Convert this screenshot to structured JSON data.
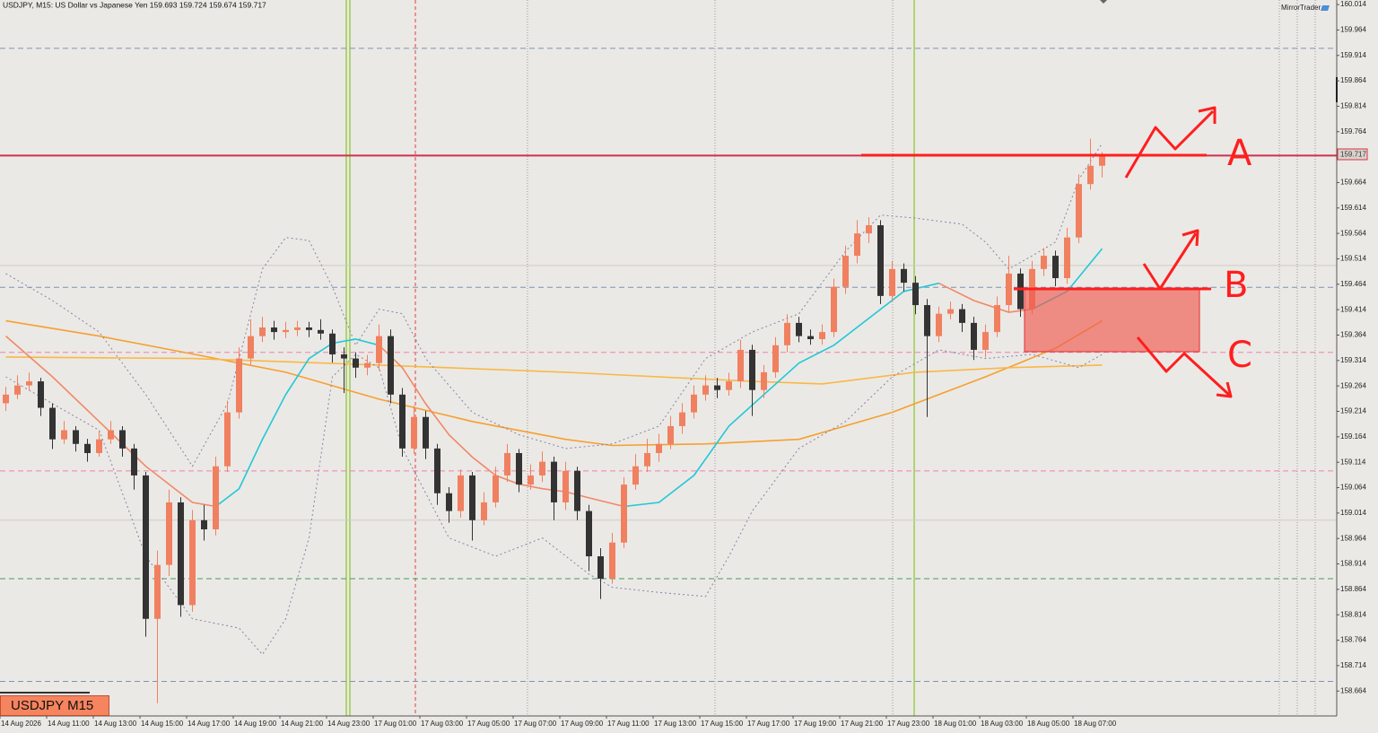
{
  "chart_data": {
    "type": "candlestick",
    "title": "USDJPY, M15:  US Dollar vs Japanese Yen  159.693 159.724 159.674 159.717",
    "brand": "MirrorTrader",
    "badge": "USDJPY M15",
    "annotations": [
      "A",
      "B",
      "C"
    ],
    "bull_color": "#f08060",
    "bear_color": "#333333",
    "ylim": [
      158.615,
      160.023
    ],
    "yticks": [
      160.014,
      159.964,
      159.914,
      159.864,
      159.814,
      159.764,
      159.714,
      159.664,
      159.614,
      159.564,
      159.514,
      159.464,
      159.414,
      159.364,
      159.314,
      159.264,
      159.214,
      159.164,
      159.114,
      159.064,
      159.014,
      158.964,
      158.914,
      158.864,
      158.814,
      158.764,
      158.714,
      158.664
    ],
    "categories": [
      "14 Aug 2026",
      null,
      null,
      null,
      "14 Aug 11:00",
      null,
      null,
      null,
      "14 Aug 13:00",
      null,
      null,
      null,
      "14 Aug 15:00",
      null,
      null,
      null,
      "14 Aug 17:00",
      null,
      null,
      null,
      "14 Aug 19:00",
      null,
      null,
      null,
      "14 Aug 21:00",
      null,
      null,
      null,
      "14 Aug 23:00",
      null,
      null,
      null,
      "17 Aug 01:00",
      null,
      null,
      null,
      "17 Aug 03:00",
      null,
      null,
      null,
      "17 Aug 05:00",
      null,
      null,
      null,
      "17 Aug 07:00",
      null,
      null,
      null,
      "17 Aug 09:00",
      null,
      null,
      null,
      "17 Aug 11:00",
      null,
      null,
      null,
      "17 Aug 13:00",
      null,
      null,
      null,
      "17 Aug 15:00",
      null,
      null,
      null,
      "17 Aug 17:00",
      null,
      null,
      null,
      "17 Aug 19:00",
      null,
      null,
      null,
      "17 Aug 21:00",
      null,
      null,
      null,
      "17 Aug 23:00",
      null,
      null,
      null,
      "18 Aug 01:00",
      null,
      null,
      null,
      "18 Aug 03:00",
      null,
      null,
      null,
      "18 Aug 05:00",
      null,
      null,
      null,
      "18 Aug 07:00",
      null,
      null
    ],
    "ohlc": [
      [
        159.23,
        159.262,
        159.215,
        159.247
      ],
      [
        159.247,
        159.285,
        159.238,
        159.265
      ],
      [
        159.265,
        159.29,
        159.255,
        159.273
      ],
      [
        159.273,
        159.28,
        159.205,
        159.221
      ],
      [
        159.221,
        159.23,
        159.14,
        159.159
      ],
      [
        159.159,
        159.195,
        159.15,
        159.177
      ],
      [
        159.177,
        159.185,
        159.135,
        159.15
      ],
      [
        159.15,
        159.16,
        159.115,
        159.132
      ],
      [
        159.132,
        159.175,
        159.125,
        159.159
      ],
      [
        159.159,
        159.195,
        159.15,
        159.177
      ],
      [
        159.177,
        159.185,
        159.125,
        159.141
      ],
      [
        159.141,
        159.15,
        159.06,
        159.088
      ],
      [
        159.088,
        159.095,
        158.771,
        158.806
      ],
      [
        158.806,
        158.94,
        158.64,
        158.912
      ],
      [
        158.912,
        159.06,
        158.89,
        159.035
      ],
      [
        159.035,
        159.045,
        158.81,
        158.833
      ],
      [
        158.833,
        159.02,
        158.82,
        159.0
      ],
      [
        159.0,
        159.03,
        158.96,
        158.982
      ],
      [
        158.982,
        159.125,
        158.97,
        159.106
      ],
      [
        159.106,
        159.235,
        159.095,
        159.212
      ],
      [
        159.212,
        159.34,
        159.2,
        159.318
      ],
      [
        159.318,
        159.395,
        159.305,
        159.362
      ],
      [
        159.362,
        159.4,
        159.35,
        159.379
      ],
      [
        159.379,
        159.392,
        159.355,
        159.37
      ],
      [
        159.37,
        159.39,
        159.358,
        159.374
      ],
      [
        159.374,
        159.392,
        159.362,
        159.379
      ],
      [
        159.379,
        159.39,
        159.36,
        159.374
      ],
      [
        159.374,
        159.395,
        159.355,
        159.367
      ],
      [
        159.367,
        159.375,
        159.31,
        159.326
      ],
      [
        159.326,
        159.34,
        159.25,
        159.318
      ],
      [
        159.318,
        159.33,
        159.28,
        159.3
      ],
      [
        159.3,
        159.325,
        159.285,
        159.309
      ],
      [
        159.309,
        159.385,
        159.295,
        159.362
      ],
      [
        159.362,
        159.375,
        159.23,
        159.247
      ],
      [
        159.247,
        159.26,
        159.125,
        159.141
      ],
      [
        159.141,
        159.225,
        159.13,
        159.203
      ],
      [
        159.203,
        159.215,
        159.12,
        159.141
      ],
      [
        159.141,
        159.15,
        159.03,
        159.053
      ],
      [
        159.053,
        159.065,
        158.995,
        159.018
      ],
      [
        159.018,
        159.1,
        159.005,
        159.088
      ],
      [
        159.088,
        159.095,
        158.96,
        159.0
      ],
      [
        159.0,
        159.055,
        158.99,
        159.035
      ],
      [
        159.035,
        159.105,
        159.025,
        159.088
      ],
      [
        159.088,
        159.15,
        159.075,
        159.132
      ],
      [
        159.132,
        159.14,
        159.055,
        159.07
      ],
      [
        159.07,
        159.11,
        159.06,
        159.088
      ],
      [
        159.088,
        159.135,
        159.075,
        159.115
      ],
      [
        159.115,
        159.125,
        159.0,
        159.035
      ],
      [
        159.035,
        159.115,
        159.02,
        159.097
      ],
      [
        159.097,
        159.105,
        159.0,
        159.018
      ],
      [
        159.018,
        159.03,
        158.9,
        158.929
      ],
      [
        158.929,
        158.945,
        158.845,
        158.885
      ],
      [
        158.885,
        158.975,
        158.875,
        158.956
      ],
      [
        158.956,
        159.085,
        158.945,
        159.07
      ],
      [
        159.07,
        159.13,
        159.06,
        159.106
      ],
      [
        159.106,
        159.16,
        159.095,
        159.132
      ],
      [
        159.132,
        159.17,
        159.115,
        159.15
      ],
      [
        159.15,
        159.205,
        159.14,
        159.185
      ],
      [
        159.185,
        159.23,
        159.17,
        159.212
      ],
      [
        159.212,
        159.265,
        159.2,
        159.247
      ],
      [
        159.247,
        159.285,
        159.235,
        159.265
      ],
      [
        159.265,
        159.28,
        159.24,
        159.256
      ],
      [
        159.256,
        159.29,
        159.245,
        159.273
      ],
      [
        159.273,
        159.355,
        159.26,
        159.335
      ],
      [
        159.335,
        159.345,
        159.205,
        159.256
      ],
      [
        159.256,
        159.305,
        159.24,
        159.291
      ],
      [
        159.291,
        159.36,
        159.28,
        159.344
      ],
      [
        159.344,
        159.405,
        159.33,
        159.388
      ],
      [
        159.388,
        159.4,
        159.35,
        159.362
      ],
      [
        159.362,
        159.375,
        159.345,
        159.356
      ],
      [
        159.356,
        159.385,
        159.345,
        159.37
      ],
      [
        159.37,
        159.475,
        159.36,
        159.459
      ],
      [
        159.459,
        159.54,
        159.445,
        159.52
      ],
      [
        159.52,
        159.59,
        159.505,
        159.564
      ],
      [
        159.564,
        159.596,
        159.545,
        159.58
      ],
      [
        159.58,
        159.59,
        159.425,
        159.441
      ],
      [
        159.441,
        159.51,
        159.43,
        159.494
      ],
      [
        159.494,
        159.505,
        159.45,
        159.467
      ],
      [
        159.467,
        159.48,
        159.405,
        159.423
      ],
      [
        159.423,
        159.435,
        159.203,
        159.362
      ],
      [
        159.362,
        159.42,
        159.35,
        159.406
      ],
      [
        159.406,
        159.43,
        159.395,
        159.415
      ],
      [
        159.415,
        159.425,
        159.37,
        159.388
      ],
      [
        159.388,
        159.4,
        159.315,
        159.335
      ],
      [
        159.335,
        159.385,
        159.32,
        159.37
      ],
      [
        159.37,
        159.44,
        159.36,
        159.423
      ],
      [
        159.423,
        159.52,
        159.41,
        159.485
      ],
      [
        159.485,
        159.495,
        159.4,
        159.415
      ],
      [
        159.415,
        159.51,
        159.405,
        159.494
      ],
      [
        159.494,
        159.535,
        159.48,
        159.52
      ],
      [
        159.52,
        159.53,
        159.46,
        159.476
      ],
      [
        159.476,
        159.575,
        159.465,
        159.556
      ],
      [
        159.556,
        159.68,
        159.545,
        159.661
      ],
      [
        159.661,
        159.75,
        159.65,
        159.697
      ],
      [
        159.697,
        159.724,
        159.674,
        159.717
      ]
    ],
    "series": [
      {
        "color": "#f5a030",
        "style": "solid",
        "x": [
          0,
          8,
          16,
          24,
          32,
          40,
          48,
          52,
          60,
          68,
          76,
          84,
          90,
          94
        ],
        "values": [
          159.392,
          159.362,
          159.327,
          159.291,
          159.238,
          159.194,
          159.159,
          159.147,
          159.15,
          159.159,
          159.212,
          159.282,
          159.338,
          159.392
        ]
      },
      {
        "color": "#f8b848",
        "style": "solid",
        "x": [
          0,
          16,
          32,
          48,
          64,
          70,
          78,
          86,
          94
        ],
        "values": [
          159.321,
          159.318,
          159.305,
          159.291,
          159.273,
          159.268,
          159.291,
          159.3,
          159.305
        ]
      },
      {
        "color": "#8a80a8",
        "style": "dotted",
        "x": [
          0,
          4,
          8,
          12,
          16,
          19,
          22,
          24,
          26,
          28,
          30,
          32,
          34,
          36,
          40,
          44,
          48,
          52,
          56,
          60,
          64,
          68,
          72,
          75,
          78,
          82,
          84,
          86,
          88,
          90,
          92,
          94
        ],
        "values": [
          159.485,
          159.432,
          159.37,
          159.247,
          159.106,
          159.229,
          159.494,
          159.556,
          159.55,
          159.459,
          159.344,
          159.415,
          159.406,
          159.318,
          159.212,
          159.168,
          159.141,
          159.15,
          159.185,
          159.318,
          159.37,
          159.406,
          159.529,
          159.6,
          159.594,
          159.582,
          159.547,
          159.494,
          159.52,
          159.547,
          159.67,
          159.741
        ]
      },
      {
        "color": "#8a80a8",
        "style": "dotted",
        "x": [
          0,
          4,
          8,
          12,
          16,
          20,
          22,
          24,
          26,
          28,
          30,
          32,
          34,
          38,
          42,
          46,
          50,
          52,
          56,
          60,
          62,
          64,
          68,
          72,
          76,
          80,
          84,
          88,
          92,
          94
        ],
        "values": [
          159.282,
          159.229,
          159.177,
          158.929,
          158.806,
          158.788,
          158.736,
          158.806,
          158.965,
          159.282,
          159.326,
          159.3,
          159.141,
          158.965,
          158.929,
          158.965,
          158.894,
          158.868,
          158.858,
          158.85,
          158.929,
          159.018,
          159.141,
          159.194,
          159.282,
          159.335,
          159.318,
          159.326,
          159.3,
          159.326
        ]
      },
      {
        "color": "#f08868",
        "style": "solid",
        "x": [
          0,
          4,
          8,
          12,
          16,
          18,
          null,
          32,
          34,
          36,
          38,
          40,
          42,
          44,
          46,
          48,
          50,
          53,
          null,
          80,
          83,
          86,
          88
        ],
        "values": [
          159.362,
          159.282,
          159.194,
          159.106,
          159.035,
          159.027,
          null,
          159.344,
          159.3,
          159.229,
          159.168,
          159.124,
          159.088,
          159.071,
          159.062,
          159.056,
          159.044,
          159.027,
          null,
          159.466,
          159.432,
          159.409,
          159.415
        ]
      },
      {
        "color": "#20c8d8",
        "style": "solid",
        "x": [
          18,
          20,
          22,
          24,
          26,
          28,
          30,
          32,
          null,
          53,
          56,
          59,
          62,
          65,
          68,
          71,
          74,
          77,
          80,
          null,
          88,
          91,
          94
        ],
        "values": [
          159.027,
          159.062,
          159.159,
          159.247,
          159.318,
          159.348,
          159.356,
          159.344,
          null,
          159.027,
          159.035,
          159.088,
          159.185,
          159.247,
          159.309,
          159.344,
          159.397,
          159.45,
          159.466,
          null,
          159.415,
          159.45,
          159.534
        ]
      }
    ],
    "levels": [
      {
        "value": 159.928,
        "color": "#7f90b8",
        "style": "dashed"
      },
      {
        "value": 159.717,
        "color": "#d03050",
        "style": "solid"
      },
      {
        "value": 159.501,
        "color": "#cfcbc6",
        "style": "solid"
      },
      {
        "value": 159.458,
        "color": "#7f90b8",
        "style": "dashed"
      },
      {
        "value": 159.33,
        "color": "#f080b0",
        "style": "dashed"
      },
      {
        "value": 159.097,
        "color": "#f080b0",
        "style": "dashed"
      },
      {
        "value": 159.0,
        "color": "#cfcbc6",
        "style": "solid"
      },
      {
        "value": 158.885,
        "color": "#40a060",
        "style": "dashed"
      },
      {
        "value": 158.683,
        "color": "#7f90b8",
        "style": "dashed"
      }
    ]
  }
}
